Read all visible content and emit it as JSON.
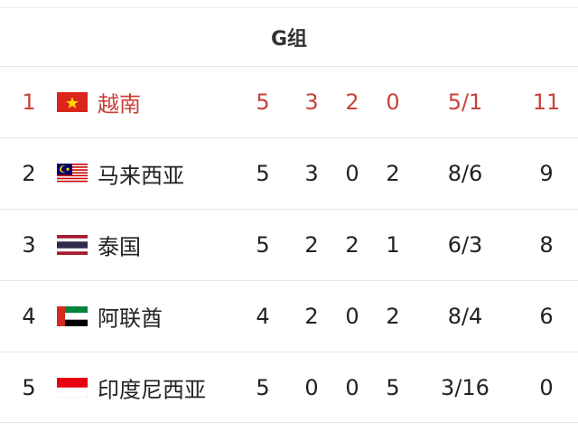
{
  "group_title": "G组",
  "highlight_color": "#c8413b",
  "rows": [
    {
      "rank": "1",
      "flag": "vietnam-flag-icon",
      "team": "越南",
      "played": "5",
      "won": "3",
      "drawn": "2",
      "lost": "0",
      "goals": "5/1",
      "points": "11",
      "highlighted": true
    },
    {
      "rank": "2",
      "flag": "malaysia-flag-icon",
      "team": "马来西亚",
      "played": "5",
      "won": "3",
      "drawn": "0",
      "lost": "2",
      "goals": "8/6",
      "points": "9"
    },
    {
      "rank": "3",
      "flag": "thailand-flag-icon",
      "team": "泰国",
      "played": "5",
      "won": "2",
      "drawn": "2",
      "lost": "1",
      "goals": "6/3",
      "points": "8"
    },
    {
      "rank": "4",
      "flag": "uae-flag-icon",
      "team": "阿联酋",
      "played": "4",
      "won": "2",
      "drawn": "0",
      "lost": "2",
      "goals": "8/4",
      "points": "6"
    },
    {
      "rank": "5",
      "flag": "indonesia-flag-icon",
      "team": "印度尼西亚",
      "played": "5",
      "won": "0",
      "drawn": "0",
      "lost": "5",
      "goals": "3/16",
      "points": "0"
    }
  ]
}
